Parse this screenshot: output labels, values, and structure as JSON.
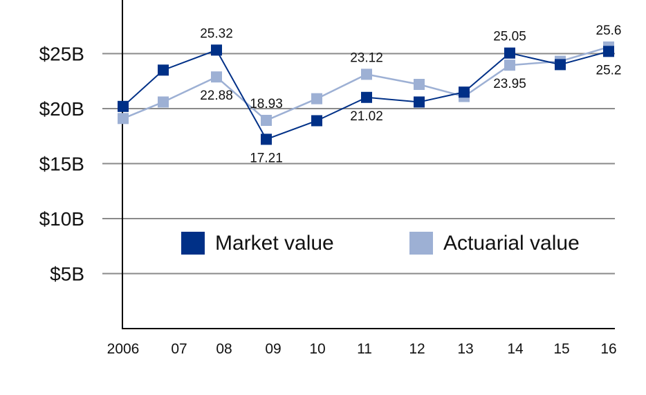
{
  "chart_data": {
    "type": "line",
    "title": "",
    "xlabel": "",
    "ylabel": "",
    "categories": [
      "2006",
      "07",
      "08",
      "09",
      "10",
      "11",
      "12",
      "13",
      "14",
      "15",
      "16"
    ],
    "y_ticks": [
      {
        "value": 5,
        "label": "$5B"
      },
      {
        "value": 10,
        "label": "$10B"
      },
      {
        "value": 15,
        "label": "$15B"
      },
      {
        "value": 20,
        "label": "$20B"
      },
      {
        "value": 25,
        "label": "$25B"
      }
    ],
    "ylim": [
      0,
      30
    ],
    "grid": true,
    "legend": "center",
    "series": [
      {
        "name": "Market value",
        "color": "#003087",
        "values": [
          20.2,
          23.5,
          25.32,
          17.21,
          18.9,
          21.02,
          20.6,
          21.5,
          25.05,
          24.0,
          25.2
        ],
        "data_labels": [
          null,
          null,
          "25.32",
          "17.21",
          null,
          "21.02",
          null,
          null,
          "25.05",
          null,
          "25.2"
        ]
      },
      {
        "name": "Actuarial value",
        "color": "#9DB0D4",
        "values": [
          19.1,
          20.6,
          22.88,
          18.93,
          20.9,
          23.12,
          22.2,
          21.1,
          23.95,
          24.3,
          25.6
        ],
        "data_labels": [
          null,
          null,
          "22.88",
          "18.93",
          null,
          "23.12",
          null,
          null,
          "23.95",
          null,
          "25.6"
        ]
      }
    ]
  }
}
